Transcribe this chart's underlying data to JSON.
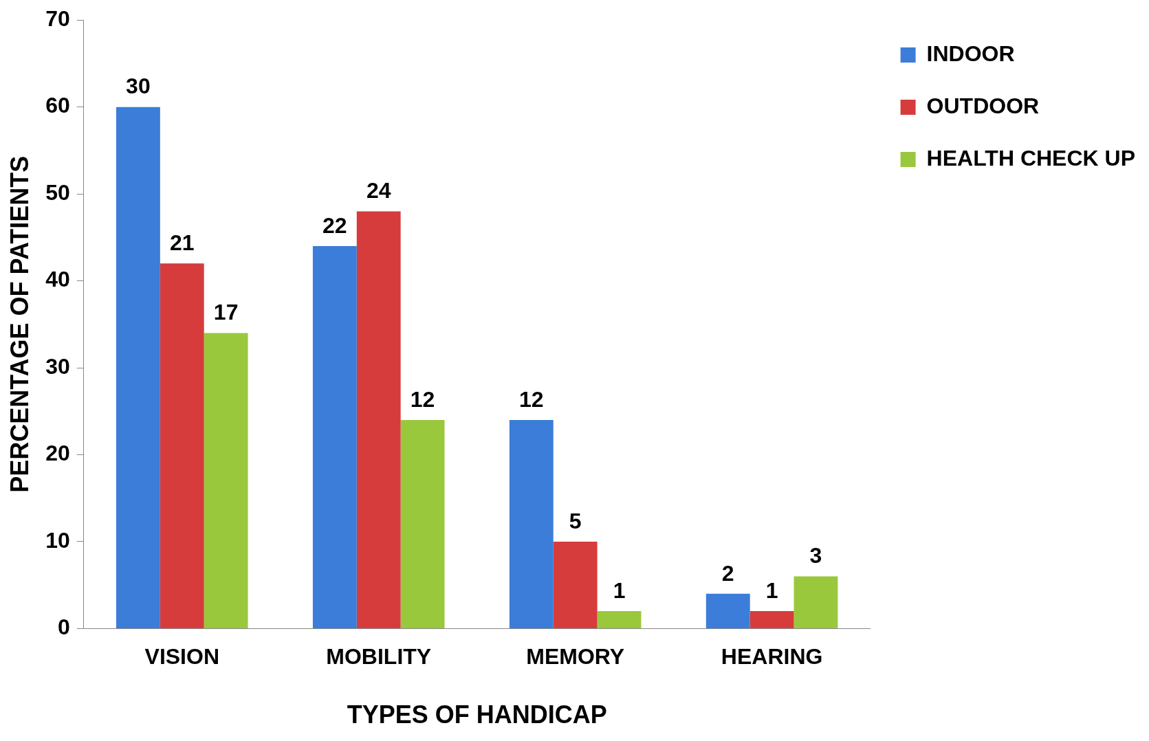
{
  "chart_data": {
    "type": "bar",
    "xlabel": "TYPES OF HANDICAP",
    "ylabel": "PERCENTAGE OF PATIENTS",
    "categories": [
      "VISION",
      "MOBILITY",
      "MEMORY",
      "HEARING"
    ],
    "series": [
      {
        "name": "INDOOR",
        "color": "#3b7dd8",
        "values": [
          60,
          44,
          24,
          4
        ]
      },
      {
        "name": "OUTDOOR",
        "color": "#d63c3c",
        "values": [
          42,
          48,
          10,
          2
        ]
      },
      {
        "name": "HEALTH CHECK UP",
        "color": "#9ac83c",
        "values": [
          34,
          24,
          2,
          6
        ]
      }
    ],
    "annotations": [
      "30",
      "21",
      "17",
      "22",
      "24",
      "12",
      "12",
      "5",
      "1",
      "2",
      "1",
      "3"
    ],
    "ylim": [
      0,
      70
    ],
    "yticks": [
      0,
      10,
      20,
      30,
      40,
      50,
      60,
      70
    ],
    "grid": false,
    "legend": "top right"
  }
}
